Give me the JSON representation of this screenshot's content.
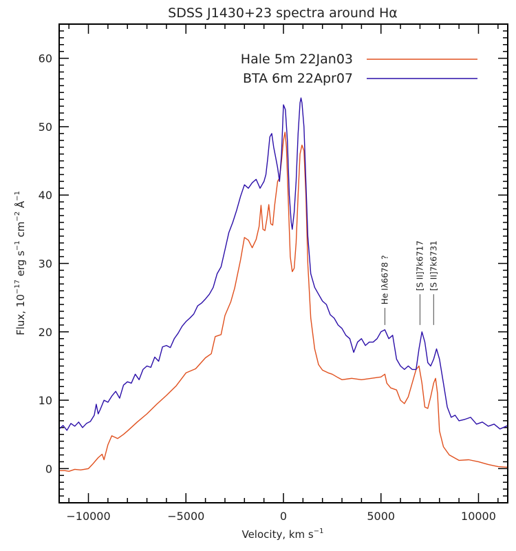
{
  "chart_data": {
    "type": "line",
    "title": "SDSS J1430+23 spectra around Hα",
    "xlabel": "Velocity, km s",
    "xlabel_sup": "−1",
    "ylabel_parts": [
      "Flux, 10",
      "−17",
      " erg s",
      "−1",
      " cm",
      "−2",
      " Å",
      "−1"
    ],
    "xlim": [
      -11500,
      11500
    ],
    "ylim": [
      -5,
      65
    ],
    "x_major_ticks": [
      -10000,
      -5000,
      0,
      5000,
      10000
    ],
    "x_tick_labels": [
      "−10000",
      "−5000",
      "0",
      "5000",
      "10000"
    ],
    "x_minor_step": 1000,
    "y_major_ticks": [
      0,
      10,
      20,
      30,
      40,
      50,
      60
    ],
    "y_tick_labels": [
      "0",
      "10",
      "20",
      "30",
      "40",
      "50",
      "60"
    ],
    "y_minor_step": 1,
    "grid": false,
    "legend_position": "top-right",
    "series": [
      {
        "name": "Hale 5m 22Jan03",
        "color": "#e0501e",
        "x": [
          -11500,
          -11200,
          -11000,
          -10700,
          -10400,
          -10000,
          -9800,
          -9500,
          -9300,
          -9200,
          -9000,
          -8800,
          -8500,
          -8200,
          -8000,
          -7500,
          -7000,
          -6500,
          -6000,
          -5500,
          -5000,
          -4500,
          -4000,
          -3700,
          -3500,
          -3200,
          -3000,
          -2700,
          -2500,
          -2200,
          -2000,
          -1800,
          -1600,
          -1400,
          -1250,
          -1150,
          -1050,
          -950,
          -850,
          -750,
          -650,
          -550,
          -450,
          -300,
          -200,
          -100,
          0,
          80,
          150,
          250,
          350,
          450,
          550,
          650,
          750,
          850,
          950,
          1050,
          1150,
          1250,
          1400,
          1600,
          1800,
          2000,
          2300,
          2500,
          2800,
          3000,
          3500,
          4000,
          4500,
          5000,
          5200,
          5300,
          5500,
          5800,
          6000,
          6200,
          6400,
          6600,
          6800,
          6950,
          7100,
          7250,
          7400,
          7550,
          7700,
          7800,
          7900,
          8000,
          8200,
          8500,
          9000,
          9500,
          10000,
          10500,
          11000,
          11500
        ],
        "y": [
          -0.3,
          -0.3,
          -0.4,
          -0.1,
          -0.2,
          0.0,
          0.6,
          1.6,
          2.1,
          1.3,
          3.5,
          4.8,
          4.4,
          5.0,
          5.5,
          6.8,
          8.0,
          9.4,
          10.7,
          12.1,
          14.0,
          14.6,
          16.2,
          16.8,
          19.3,
          19.6,
          22.4,
          24.4,
          26.4,
          30.5,
          33.8,
          33.4,
          32.3,
          33.5,
          35.4,
          38.5,
          35.0,
          34.8,
          36.5,
          38.6,
          35.8,
          35.6,
          38.5,
          42.0,
          42.5,
          45.0,
          48.0,
          49.2,
          47.0,
          39.0,
          31.0,
          28.8,
          29.3,
          33.0,
          40.0,
          46.0,
          47.3,
          46.5,
          40.0,
          30.0,
          22.0,
          17.5,
          15.2,
          14.4,
          14.0,
          13.8,
          13.3,
          13.0,
          13.2,
          13.0,
          13.2,
          13.4,
          13.8,
          12.5,
          11.8,
          11.5,
          10.0,
          9.5,
          10.5,
          12.5,
          14.5,
          15.0,
          12.5,
          9.0,
          8.8,
          10.5,
          12.5,
          13.2,
          11.0,
          5.5,
          3.2,
          2.0,
          1.2,
          1.3,
          1.0,
          0.6,
          0.3,
          0.2
        ]
      },
      {
        "name": "BTA 6m 22Apr07",
        "color": "#2a0ea8",
        "x": [
          -11500,
          -11300,
          -11100,
          -10900,
          -10700,
          -10500,
          -10300,
          -10100,
          -9900,
          -9700,
          -9600,
          -9500,
          -9400,
          -9200,
          -9000,
          -8800,
          -8600,
          -8400,
          -8200,
          -8000,
          -7800,
          -7600,
          -7400,
          -7200,
          -7000,
          -6800,
          -6600,
          -6400,
          -6200,
          -6000,
          -5800,
          -5600,
          -5400,
          -5200,
          -5000,
          -4800,
          -4600,
          -4400,
          -4200,
          -4000,
          -3800,
          -3600,
          -3400,
          -3200,
          -3000,
          -2800,
          -2600,
          -2400,
          -2200,
          -2000,
          -1800,
          -1600,
          -1400,
          -1200,
          -1000,
          -900,
          -800,
          -700,
          -600,
          -500,
          -400,
          -300,
          -200,
          -100,
          0,
          100,
          200,
          300,
          400,
          450,
          550,
          650,
          750,
          850,
          900,
          950,
          1050,
          1150,
          1250,
          1400,
          1600,
          1800,
          2000,
          2200,
          2400,
          2600,
          2800,
          3000,
          3200,
          3400,
          3600,
          3800,
          4000,
          4200,
          4400,
          4600,
          4800,
          5000,
          5200,
          5400,
          5600,
          5800,
          6000,
          6200,
          6400,
          6600,
          6800,
          6950,
          7100,
          7250,
          7400,
          7550,
          7700,
          7850,
          8000,
          8200,
          8400,
          8600,
          8800,
          9000,
          9300,
          9600,
          9900,
          10200,
          10500,
          10800,
          11100,
          11500
        ],
        "y": [
          5.8,
          6.3,
          5.6,
          6.6,
          6.2,
          6.8,
          6.0,
          6.6,
          6.9,
          7.8,
          9.4,
          8.0,
          8.6,
          10.0,
          9.7,
          10.6,
          11.3,
          10.3,
          12.2,
          12.7,
          12.5,
          13.8,
          13.0,
          14.5,
          15.0,
          14.8,
          16.3,
          15.7,
          17.8,
          18.0,
          17.7,
          19.0,
          19.8,
          20.8,
          21.5,
          22.0,
          22.6,
          23.8,
          24.2,
          24.8,
          25.5,
          26.5,
          28.5,
          29.5,
          32.0,
          34.5,
          36.0,
          37.8,
          39.8,
          41.5,
          41.0,
          41.8,
          42.3,
          41.0,
          42.0,
          43.0,
          45.5,
          48.5,
          49.0,
          47.0,
          45.5,
          44.0,
          42.0,
          46.0,
          53.2,
          52.5,
          48.0,
          40.0,
          36.0,
          35.0,
          37.5,
          42.0,
          49.0,
          53.5,
          54.2,
          53.5,
          50.0,
          42.0,
          34.0,
          28.5,
          26.5,
          25.5,
          24.5,
          24.0,
          22.5,
          22.0,
          21.0,
          20.5,
          19.5,
          19.0,
          17.0,
          18.5,
          19.0,
          18.0,
          18.5,
          18.5,
          19.0,
          20.0,
          20.3,
          19.0,
          19.5,
          16.0,
          15.0,
          14.5,
          15.0,
          14.5,
          14.5,
          17.5,
          20.0,
          18.5,
          15.5,
          15.0,
          16.0,
          17.5,
          16.0,
          12.5,
          9.0,
          7.5,
          7.8,
          7.0,
          7.2,
          7.5,
          6.5,
          6.8,
          6.2,
          6.5,
          5.8,
          6.3
        ]
      }
    ],
    "annotations": [
      {
        "text": "He Iλ6678 ?",
        "x": 5200,
        "y_from": 21,
        "y_to": 24
      },
      {
        "text": "[S II]7k6717",
        "x": 7000,
        "y_from": 21,
        "y_to": 26
      },
      {
        "text": "[S II]7k6731",
        "x": 7700,
        "y_from": 21,
        "y_to": 26
      }
    ]
  }
}
